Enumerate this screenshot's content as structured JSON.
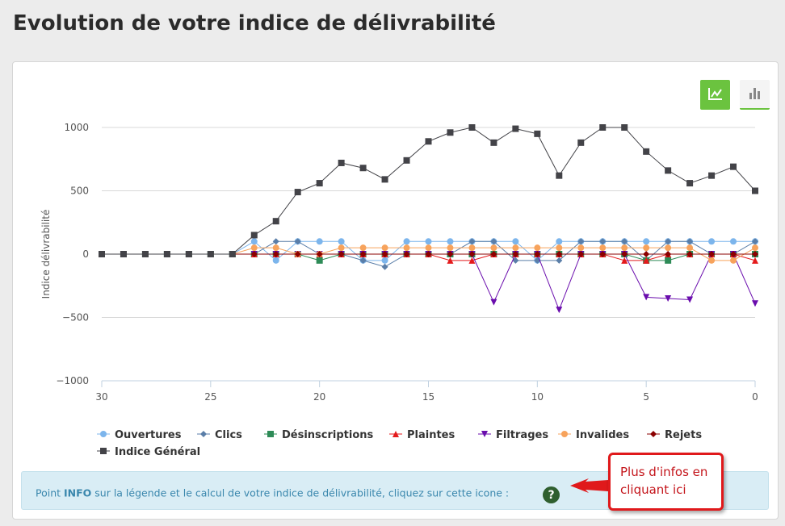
{
  "page": {
    "title": "Evolution de votre indice de délivrabilité"
  },
  "toolbar": {
    "line_view_icon": "line-chart-icon",
    "bar_view_icon": "bar-chart-icon",
    "active_view": "line"
  },
  "info": {
    "text_before": "Point ",
    "text_bold": "INFO",
    "text_after": " sur la légende et le calcul de votre indice de délivrabilité, cliquez sur cette icone :",
    "help_icon_glyph": "?"
  },
  "callout": {
    "line1": "Plus d'infos en",
    "line2": "cliquant ici"
  },
  "chart_data": {
    "type": "line",
    "ylabel": "Indice délivrabilité",
    "xlabel": "",
    "ylim": [
      -1000,
      1000
    ],
    "xlim": [
      30,
      0
    ],
    "x_reversed": true,
    "yticks": [
      1000,
      500,
      0,
      -500,
      -1000
    ],
    "ytick_labels": [
      "1000",
      "500",
      "0",
      "−500",
      "−1000"
    ],
    "xticks": [
      30,
      25,
      20,
      15,
      10,
      5,
      0
    ],
    "ygrid": true,
    "legend_position": "bottom",
    "x": [
      30,
      29,
      28,
      27,
      26,
      25,
      24,
      23,
      22,
      21,
      20,
      19,
      18,
      17,
      16,
      15,
      14,
      13,
      12,
      11,
      10,
      9,
      8,
      7,
      6,
      5,
      4,
      3,
      2,
      1,
      0
    ],
    "series": [
      {
        "name": "Ouvertures",
        "color": "#7cb5ec",
        "marker": "circle",
        "values": [
          0,
          0,
          0,
          0,
          0,
          0,
          0,
          100,
          -50,
          100,
          100,
          100,
          -50,
          -50,
          100,
          100,
          100,
          100,
          100,
          100,
          -50,
          100,
          100,
          100,
          100,
          100,
          100,
          100,
          100,
          100,
          100
        ]
      },
      {
        "name": "Clics",
        "color": "#5a7ea8",
        "marker": "diamond",
        "values": [
          0,
          0,
          0,
          0,
          0,
          0,
          0,
          0,
          100,
          100,
          0,
          0,
          -50,
          -100,
          0,
          0,
          0,
          100,
          100,
          -50,
          -50,
          -50,
          100,
          100,
          100,
          -50,
          100,
          100,
          0,
          0,
          100
        ]
      },
      {
        "name": "Désinscriptions",
        "color": "#2e8b57",
        "marker": "square",
        "values": [
          0,
          0,
          0,
          0,
          0,
          0,
          0,
          0,
          0,
          0,
          -50,
          0,
          0,
          0,
          0,
          0,
          0,
          0,
          0,
          0,
          0,
          0,
          0,
          0,
          0,
          -50,
          -50,
          0,
          0,
          0,
          0
        ]
      },
      {
        "name": "Plaintes",
        "color": "#e41a1c",
        "marker": "triangle",
        "values": [
          0,
          0,
          0,
          0,
          0,
          0,
          0,
          0,
          0,
          0,
          0,
          0,
          0,
          0,
          0,
          0,
          -50,
          -50,
          0,
          0,
          0,
          0,
          0,
          0,
          -50,
          -50,
          0,
          0,
          0,
          0,
          -50
        ]
      },
      {
        "name": "Filtrages",
        "color": "#6a0dad",
        "marker": "triangle-down",
        "values": [
          0,
          0,
          0,
          0,
          0,
          0,
          0,
          0,
          0,
          0,
          0,
          0,
          0,
          0,
          0,
          0,
          0,
          0,
          -380,
          0,
          0,
          -440,
          0,
          0,
          0,
          -340,
          -350,
          -360,
          0,
          0,
          -390
        ]
      },
      {
        "name": "Invalides",
        "color": "#f7a35c",
        "marker": "circle",
        "values": [
          0,
          0,
          0,
          0,
          0,
          0,
          0,
          50,
          50,
          0,
          0,
          50,
          50,
          50,
          50,
          50,
          50,
          50,
          50,
          50,
          50,
          50,
          50,
          50,
          50,
          50,
          50,
          50,
          -50,
          -50,
          50
        ]
      },
      {
        "name": "Rejets",
        "color": "#8b0000",
        "marker": "diamond",
        "values": [
          0,
          0,
          0,
          0,
          0,
          0,
          0,
          0,
          0,
          0,
          0,
          0,
          0,
          0,
          0,
          0,
          0,
          0,
          0,
          0,
          0,
          0,
          0,
          0,
          0,
          0,
          0,
          0,
          0,
          0,
          0
        ]
      },
      {
        "name": "Indice Général",
        "color": "#434348",
        "marker": "square",
        "values": [
          0,
          0,
          0,
          0,
          0,
          0,
          0,
          150,
          260,
          490,
          560,
          720,
          680,
          590,
          740,
          890,
          960,
          1000,
          880,
          990,
          950,
          620,
          880,
          1000,
          1000,
          810,
          660,
          560,
          620,
          690,
          500
        ]
      }
    ]
  }
}
